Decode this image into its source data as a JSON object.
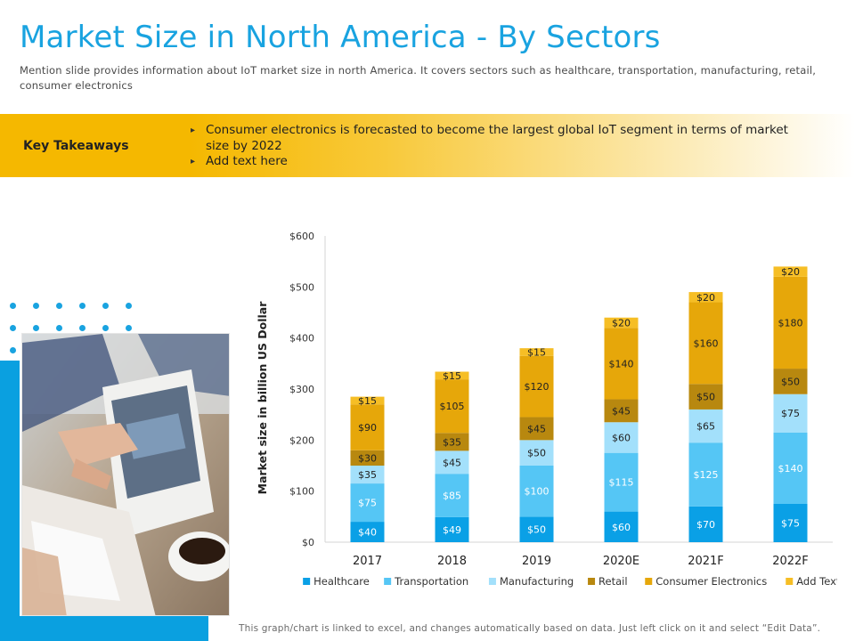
{
  "title": "Market Size in North America - By Sectors",
  "subtitle": "Mention slide provides information about IoT market size in north America. It covers sectors such as healthcare, transportation, manufacturing, retail, consumer electronics",
  "takeaways": {
    "label": "Key Takeaways",
    "items": [
      "Consumer electronics is forecasted to become the largest global IoT segment in terms of market size by 2022",
      "Add text here"
    ]
  },
  "footer": "This graph/chart is linked to excel, and changes automatically based on data. Just left click on it and select “Edit Data”.",
  "colors": {
    "title": "#19a3e0",
    "band": "#f5b800",
    "accent_blue": "#0aa0e0"
  },
  "chart_data": {
    "type": "bar",
    "stacked": true,
    "categories": [
      "2017",
      "2018",
      "2019",
      "2020E",
      "2021F",
      "2022F"
    ],
    "ylabel": "Market size in billion US Dollar",
    "ylim": [
      0,
      600
    ],
    "yticks": [
      0,
      100,
      200,
      300,
      400,
      500,
      600
    ],
    "ytick_labels": [
      "$0",
      "$100",
      "$200",
      "$300",
      "$400",
      "$500",
      "$600"
    ],
    "value_prefix": "$",
    "legend_position": "bottom",
    "series": [
      {
        "name": "Healthcare",
        "color": "#0aa0e6",
        "values": [
          40,
          49,
          50,
          60,
          70,
          75
        ]
      },
      {
        "name": "Transportation",
        "color": "#55c6f5",
        "values": [
          75,
          85,
          100,
          115,
          125,
          140
        ]
      },
      {
        "name": "Manufacturing",
        "color": "#a3e0fb",
        "values": [
          35,
          45,
          50,
          60,
          65,
          75
        ]
      },
      {
        "name": "Retail",
        "color": "#b8880f",
        "values": [
          30,
          35,
          45,
          45,
          50,
          50
        ]
      },
      {
        "name": "Consumer Electronics",
        "color": "#e6a70a",
        "values": [
          90,
          105,
          120,
          140,
          160,
          180
        ]
      },
      {
        "name": "Add Text",
        "color": "#f6be25",
        "values": [
          15,
          15,
          15,
          20,
          20,
          20
        ]
      }
    ]
  }
}
